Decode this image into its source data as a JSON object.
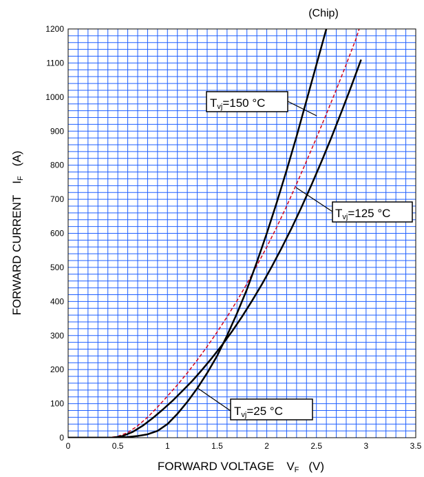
{
  "chart_data": {
    "type": "line",
    "note": "(Chip)",
    "xlabel": "FORWARD VOLTAGE",
    "xlabel_symbol": "V",
    "xlabel_symbol_sub": "F",
    "xlabel_unit": "(V)",
    "ylabel": "FORWARD CURRENT",
    "ylabel_symbol": "I",
    "ylabel_symbol_sub": "F",
    "ylabel_unit": "(A)",
    "xlim": [
      0,
      3.5
    ],
    "ylim": [
      0,
      1200
    ],
    "x_ticks": [
      0,
      0.5,
      1,
      1.5,
      2,
      2.5,
      3,
      3.5
    ],
    "x_tick_labels": [
      "0",
      "0.5",
      "1",
      "1.5",
      "2",
      "2.5",
      "3",
      "3.5"
    ],
    "y_ticks": [
      0,
      100,
      200,
      300,
      400,
      500,
      600,
      700,
      800,
      900,
      1000,
      1100,
      1200
    ],
    "y_tick_labels": [
      "0",
      "100",
      "200",
      "300",
      "400",
      "500",
      "600",
      "700",
      "800",
      "900",
      "1000",
      "1100",
      "1200"
    ],
    "grid": true,
    "grid_color": "#1f5fff",
    "series": [
      {
        "name": "Tvj=25 °C",
        "label_main": "T",
        "label_sub": "vj",
        "label_rest": "=25 °C",
        "color": "#000000",
        "dash": false,
        "x": [
          0,
          0.5,
          0.6,
          0.7,
          0.8,
          0.9,
          1.0,
          1.1,
          1.2,
          1.3,
          1.4,
          1.5,
          1.6,
          1.7,
          1.8,
          1.9,
          2.0,
          2.1,
          2.2,
          2.3,
          2.4,
          2.5,
          2.6,
          2.65
        ],
        "y": [
          0,
          0,
          2,
          5,
          10,
          20,
          40,
          70,
          105,
          145,
          190,
          240,
          300,
          365,
          435,
          515,
          600,
          690,
          785,
          885,
          990,
          1095,
          1200,
          1250
        ]
      },
      {
        "name": "Tvj=125 °C",
        "label_main": "T",
        "label_sub": "vj",
        "label_rest": "=125 °C",
        "color": "#d0021b",
        "dash": true,
        "x": [
          0,
          0.4,
          0.5,
          0.6,
          0.7,
          0.8,
          0.9,
          1.0,
          1.1,
          1.2,
          1.3,
          1.4,
          1.5,
          1.6,
          1.7,
          1.8,
          1.9,
          2.0,
          2.1,
          2.2,
          2.3,
          2.4,
          2.5,
          2.6,
          2.7,
          2.8,
          2.9,
          2.93
        ],
        "y": [
          0,
          0,
          4,
          15,
          35,
          60,
          90,
          122,
          155,
          190,
          228,
          268,
          310,
          355,
          402,
          452,
          505,
          560,
          618,
          680,
          745,
          812,
          880,
          950,
          1022,
          1096,
          1172,
          1200
        ]
      },
      {
        "name": "Tvj=150 °C",
        "label_main": "T",
        "label_sub": "vj",
        "label_rest": "=150 °C",
        "color": "#000000",
        "dash": false,
        "x": [
          0,
          0.45,
          0.55,
          0.65,
          0.75,
          0.85,
          0.95,
          1.05,
          1.15,
          1.25,
          1.35,
          1.45,
          1.55,
          1.65,
          1.75,
          1.85,
          1.95,
          2.05,
          2.15,
          2.25,
          2.35,
          2.45,
          2.55,
          2.65,
          2.75,
          2.85,
          2.95
        ],
        "y": [
          0,
          0,
          5,
          17,
          35,
          57,
          82,
          108,
          137,
          167,
          200,
          235,
          272,
          312,
          355,
          401,
          450,
          502,
          557,
          615,
          677,
          742,
          810,
          881,
          955,
          1031,
          1110
        ]
      }
    ]
  }
}
